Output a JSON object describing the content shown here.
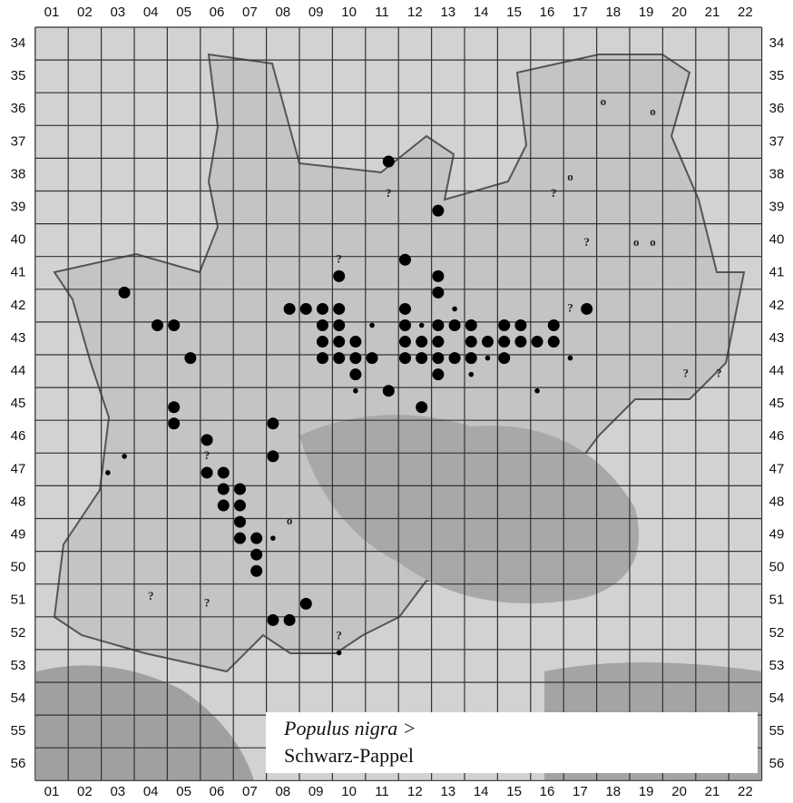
{
  "map": {
    "columns": [
      "01",
      "02",
      "03",
      "04",
      "05",
      "06",
      "07",
      "08",
      "09",
      "10",
      "11",
      "12",
      "13",
      "14",
      "15",
      "16",
      "17",
      "18",
      "19",
      "20",
      "21",
      "22"
    ],
    "rows": [
      "34",
      "35",
      "36",
      "37",
      "38",
      "39",
      "40",
      "41",
      "42",
      "43",
      "44",
      "45",
      "46",
      "47",
      "48",
      "49",
      "50",
      "51",
      "52",
      "53",
      "54",
      "55",
      "56"
    ],
    "legend": {
      "species": "Populus nigra >",
      "common_name": "Schwarz-Pappel"
    },
    "uncertain_symbol": "?",
    "old_symbol": "o",
    "records_large": [
      [
        11.2,
        37.6
      ],
      [
        12.7,
        39.1
      ],
      [
        11.7,
        40.6
      ],
      [
        9.7,
        41.1
      ],
      [
        12.7,
        41.1
      ],
      [
        12.7,
        41.6
      ],
      [
        3.2,
        41.6
      ],
      [
        8.2,
        42.1
      ],
      [
        8.7,
        42.1
      ],
      [
        9.2,
        42.1
      ],
      [
        9.7,
        42.1
      ],
      [
        11.7,
        42.1
      ],
      [
        17.2,
        42.1
      ],
      [
        4.2,
        42.6
      ],
      [
        4.7,
        42.6
      ],
      [
        9.2,
        42.6
      ],
      [
        9.7,
        42.6
      ],
      [
        11.7,
        42.6
      ],
      [
        12.7,
        42.6
      ],
      [
        13.2,
        42.6
      ],
      [
        13.7,
        42.6
      ],
      [
        14.7,
        42.6
      ],
      [
        15.2,
        42.6
      ],
      [
        16.2,
        42.6
      ],
      [
        9.2,
        43.1
      ],
      [
        9.7,
        43.1
      ],
      [
        10.2,
        43.1
      ],
      [
        11.7,
        43.1
      ],
      [
        12.2,
        43.1
      ],
      [
        12.7,
        43.1
      ],
      [
        13.7,
        43.1
      ],
      [
        14.2,
        43.1
      ],
      [
        14.7,
        43.1
      ],
      [
        15.2,
        43.1
      ],
      [
        15.7,
        43.1
      ],
      [
        16.2,
        43.1
      ],
      [
        5.2,
        43.6
      ],
      [
        9.2,
        43.6
      ],
      [
        9.7,
        43.6
      ],
      [
        10.2,
        43.6
      ],
      [
        10.7,
        43.6
      ],
      [
        11.7,
        43.6
      ],
      [
        12.2,
        43.6
      ],
      [
        12.7,
        43.6
      ],
      [
        13.2,
        43.6
      ],
      [
        13.7,
        43.6
      ],
      [
        14.7,
        43.6
      ],
      [
        10.2,
        44.1
      ],
      [
        12.7,
        44.1
      ],
      [
        11.2,
        44.6
      ],
      [
        12.2,
        45.1
      ],
      [
        4.7,
        45.1
      ],
      [
        4.7,
        45.6
      ],
      [
        7.7,
        45.6
      ],
      [
        5.7,
        46.1
      ],
      [
        7.7,
        46.6
      ],
      [
        5.7,
        47.1
      ],
      [
        6.2,
        47.1
      ],
      [
        6.2,
        47.6
      ],
      [
        6.7,
        47.6
      ],
      [
        6.2,
        48.1
      ],
      [
        6.7,
        48.1
      ],
      [
        6.7,
        48.6
      ],
      [
        6.7,
        49.1
      ],
      [
        7.2,
        49.1
      ],
      [
        7.2,
        49.6
      ],
      [
        7.2,
        50.1
      ],
      [
        8.7,
        51.1
      ],
      [
        7.7,
        51.6
      ],
      [
        8.2,
        51.6
      ]
    ],
    "records_small": [
      [
        10.7,
        42.6
      ],
      [
        12.2,
        42.6
      ],
      [
        13.2,
        42.1
      ],
      [
        9.2,
        43.1
      ],
      [
        14.2,
        43.6
      ],
      [
        13.7,
        44.1
      ],
      [
        10.2,
        44.6
      ],
      [
        15.7,
        44.6
      ],
      [
        16.7,
        43.6
      ],
      [
        3.2,
        46.6
      ],
      [
        2.7,
        47.1
      ],
      [
        7.7,
        49.1
      ],
      [
        9.7,
        52.6
      ]
    ],
    "records_uncertain": [
      [
        11.2,
        38.6
      ],
      [
        9.7,
        40.6
      ],
      [
        16.2,
        38.6
      ],
      [
        17.2,
        40.1
      ],
      [
        16.7,
        42.1
      ],
      [
        20.2,
        44.1
      ],
      [
        21.2,
        44.1
      ],
      [
        5.7,
        46.6
      ],
      [
        4.0,
        50.9
      ],
      [
        5.7,
        51.1
      ],
      [
        9.7,
        52.1
      ]
    ],
    "records_old": [
      [
        17.7,
        35.8
      ],
      [
        19.2,
        36.1
      ],
      [
        16.7,
        38.1
      ],
      [
        18.7,
        40.1
      ],
      [
        19.2,
        40.1
      ],
      [
        8.2,
        48.6
      ]
    ]
  }
}
